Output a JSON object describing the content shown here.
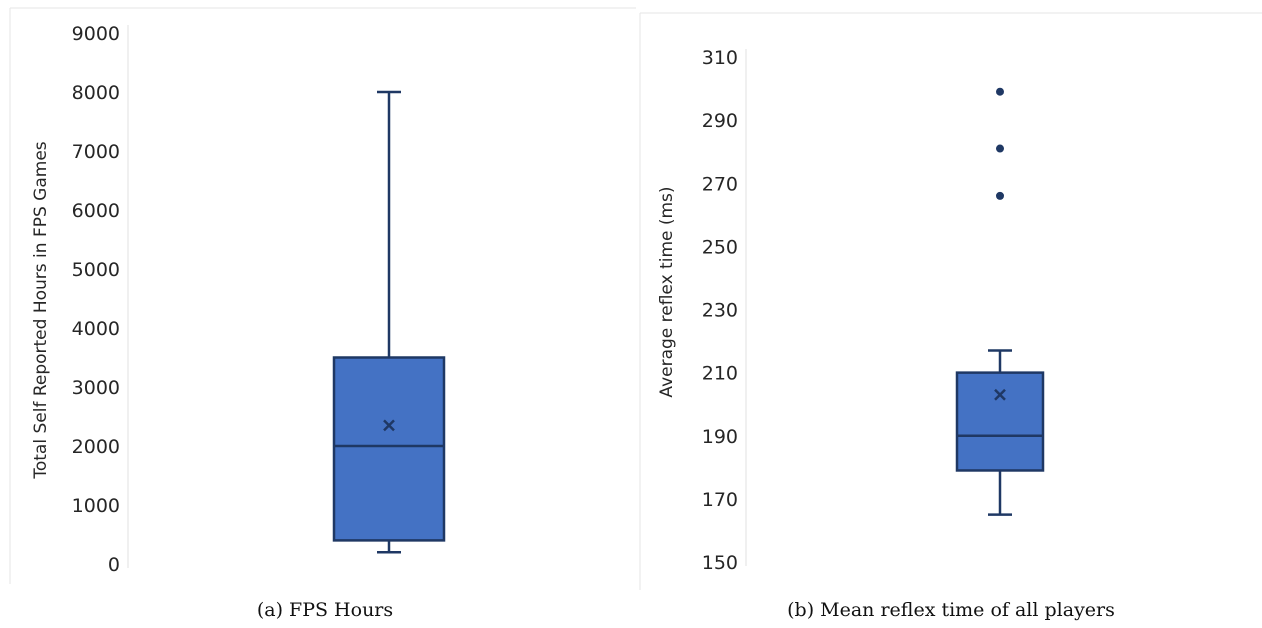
{
  "chart_data": [
    {
      "type": "boxplot",
      "ylabel": "Total Self Reported Hours in FPS Games",
      "ylim": [
        0,
        9000
      ],
      "yticks": [
        0,
        1000,
        2000,
        3000,
        4000,
        5000,
        6000,
        7000,
        8000,
        9000
      ],
      "box": {
        "min": 200,
        "q1": 400,
        "median": 2000,
        "q3": 3500,
        "max": 8000,
        "mean": 2350
      },
      "outliers": [],
      "caption": "(a) FPS Hours",
      "colors": {
        "fill": "#4472C4",
        "stroke": "#1F3864"
      },
      "grid": false
    },
    {
      "type": "boxplot",
      "ylabel": "Average reflex time (ms)",
      "ylim": [
        150,
        310
      ],
      "yticks": [
        150,
        170,
        190,
        210,
        230,
        250,
        270,
        290,
        310
      ],
      "box": {
        "min": 165,
        "q1": 179,
        "median": 190,
        "q3": 210,
        "max": 217,
        "mean": 203
      },
      "outliers": [
        266,
        281,
        299
      ],
      "caption": "(b) Mean reflex time of all players",
      "colors": {
        "fill": "#4472C4",
        "stroke": "#1F3864"
      },
      "grid": false
    }
  ]
}
